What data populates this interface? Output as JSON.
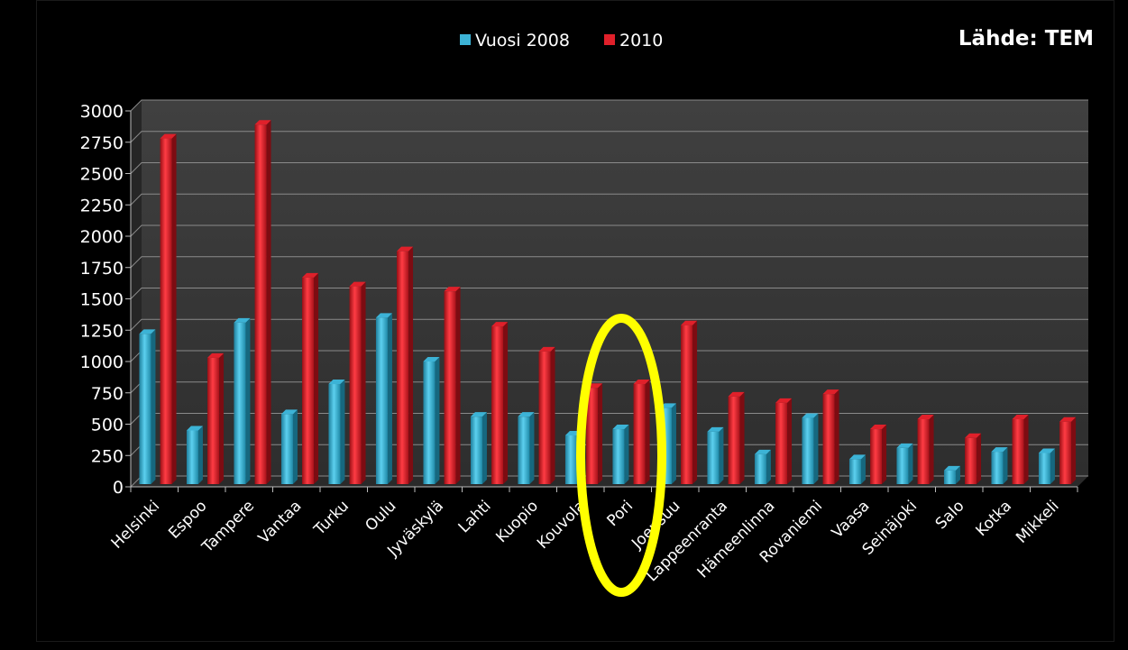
{
  "source_label": "Lähde: TEM",
  "highlighted_category": "Pori",
  "colors": {
    "background": "#000000",
    "plot_wall": "#3a3a3a",
    "series_2008": "#3cb3d6",
    "series_2010": "#e0202a",
    "highlight": "#ffff00"
  },
  "chart_data": {
    "type": "bar",
    "title": "",
    "xlabel": "",
    "ylabel": "",
    "ylim": [
      0,
      3000
    ],
    "yticks": [
      0,
      250,
      500,
      750,
      1000,
      1250,
      1500,
      1750,
      2000,
      2250,
      2500,
      2750,
      3000
    ],
    "grid": true,
    "legend_position": "top",
    "categories": [
      "Helsinki",
      "Espoo",
      "Tampere",
      "Vantaa",
      "Turku",
      "Oulu",
      "Jyväskylä",
      "Lahti",
      "Kuopio",
      "Kouvola",
      "Pori",
      "Joensuu",
      "Lappeenranta",
      "Hämeenlinna",
      "Rovaniemi",
      "Vaasa",
      "Seinäjoki",
      "Salo",
      "Kotka",
      "Mikkeli"
    ],
    "series": [
      {
        "name": "Vuosi 2008",
        "values": [
          1220,
          450,
          1310,
          580,
          820,
          1350,
          1000,
          560,
          560,
          410,
          460,
          630,
          440,
          260,
          550,
          220,
          310,
          130,
          280,
          270
        ]
      },
      {
        "name": "2010",
        "values": [
          2780,
          1030,
          2890,
          1670,
          1600,
          1880,
          1560,
          1280,
          1080,
          790,
          820,
          1290,
          720,
          670,
          740,
          460,
          540,
          390,
          540,
          520
        ]
      }
    ]
  }
}
